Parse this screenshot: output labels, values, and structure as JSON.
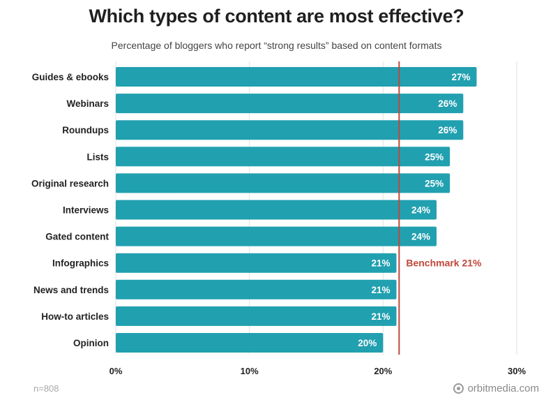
{
  "header": {
    "title": "Which types of content are most effective?",
    "subtitle": "Percentage of bloggers who report “strong results” based on content formats"
  },
  "footer": {
    "sample_size": "n=808",
    "brand": "orbitmedia.com",
    "brand_icon": "orbit-logo-icon"
  },
  "colors": {
    "bar": "#21a0b0",
    "benchmark": "#c0473a",
    "bar_label": "#ffffff",
    "category_label": "#222222",
    "grid": "#e2e2e2"
  },
  "chart_data": {
    "type": "bar",
    "orientation": "horizontal",
    "title": "Which types of content are most effective?",
    "subtitle": "Percentage of bloggers who report “strong results” based on content formats",
    "categories": [
      "Guides & ebooks",
      "Webinars",
      "Roundups",
      "Lists",
      "Original research",
      "Interviews",
      "Gated content",
      "Infographics",
      "News and trends",
      "How-to articles",
      "Opinion"
    ],
    "values": [
      27,
      26,
      26,
      25,
      25,
      24,
      24,
      21,
      21,
      21,
      20
    ],
    "value_labels": [
      "27%",
      "26%",
      "26%",
      "25%",
      "25%",
      "24%",
      "24%",
      "21%",
      "21%",
      "21%",
      "20%"
    ],
    "xlim": [
      0,
      30
    ],
    "x_ticks": [
      0,
      10,
      20,
      30
    ],
    "x_tick_labels": [
      "0%",
      "10%",
      "20%",
      "30%"
    ],
    "grid": true,
    "benchmark": {
      "value": 21.2,
      "label": "Benchmark 21%"
    }
  }
}
